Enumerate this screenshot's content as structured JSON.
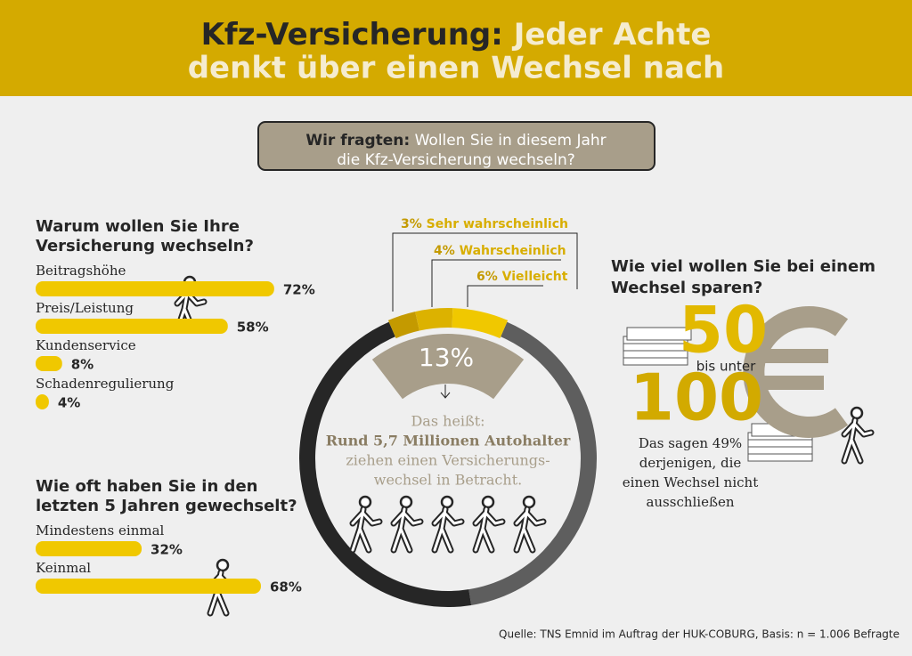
{
  "header": {
    "title_lead": "Kfz-Versicherung:",
    "title_rest": "Jeder Achte",
    "title_line2": "denkt über einen Wechsel nach"
  },
  "question": {
    "lead": "Wir fragten:",
    "line1": "Wollen Sie in diesem Jahr",
    "line2": "die Kfz-Versicherung wechseln?"
  },
  "reasons": {
    "title": [
      "Warum wollen Sie Ihre",
      "Versicherung wechseln?"
    ],
    "items": [
      {
        "label": "Beitragshöhe",
        "value": 72,
        "value_label": "72%"
      },
      {
        "label": "Preis/Leistung",
        "value": 58,
        "value_label": "58%"
      },
      {
        "label": "Kundenservice",
        "value": 8,
        "value_label": "8%"
      },
      {
        "label": "Schadenregulierung",
        "value": 4,
        "value_label": "4%"
      }
    ]
  },
  "switches": {
    "title": [
      "Wie oft haben Sie in den",
      "letzten 5 Jahren gewechselt?"
    ],
    "items": [
      {
        "label": "Mindestens einmal",
        "value": 32,
        "value_label": "32%"
      },
      {
        "label": "Keinmal",
        "value": 68,
        "value_label": "68%"
      }
    ]
  },
  "ring": {
    "segments": [
      {
        "label": "Sehr wahrscheinlich",
        "value": 3,
        "value_label": "3%"
      },
      {
        "label": "Wahrscheinlich",
        "value": 4,
        "value_label": "4%"
      },
      {
        "label": "Vielleicht",
        "value": 6,
        "value_label": "6%"
      }
    ],
    "total": 13,
    "total_label": "13%",
    "text": [
      "Das heißt:",
      "Rund 5,7 Millionen Autohalter",
      "ziehen einen Versicherungs-",
      "wechsel in Betracht."
    ]
  },
  "savings": {
    "title": [
      "Wie viel wollen Sie bei einem",
      "Wechsel sparen?"
    ],
    "from": "50",
    "between": "bis unter",
    "to": "100",
    "note": [
      "Das sagen 49%",
      "derjenigen, die",
      "einen Wechsel nicht",
      "ausschließen"
    ]
  },
  "source": "Quelle: TNS Emnid im Auftrag der HUK-COBURG, Basis: n = 1.006 Befragte"
}
